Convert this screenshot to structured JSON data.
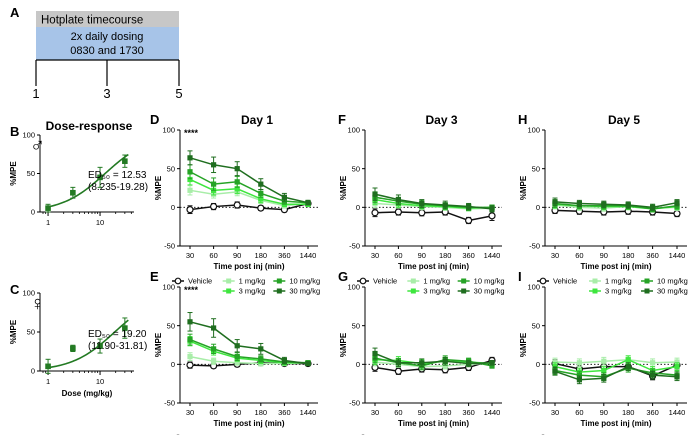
{
  "colors": {
    "Vehicle": "#111111",
    "1 mg/kg": "#a8eda8",
    "3 mg/kg": "#3ee63e",
    "10 mg/kg": "#26a326",
    "30 mg/kg": "#1f6e1f",
    "dose_response": "#237a23",
    "timeline_header": "#c7c7c7",
    "timeline_body": "#a7c4e8"
  },
  "timeline": {
    "label": "A",
    "header": "Hotplate timecourse",
    "body_line1": "2x daily dosing",
    "body_line2": "0830 and 1730",
    "days": [
      "1",
      "3",
      "5"
    ]
  },
  "chart_data": [
    {
      "id": "B",
      "type": "scatter",
      "title": "Dose-response",
      "sex": "male",
      "sex_symbol": "♂",
      "xscale": "log",
      "x": [
        1,
        3,
        10,
        30
      ],
      "y": [
        5,
        25,
        45,
        66
      ],
      "err": [
        5,
        7,
        13,
        8
      ],
      "fit": "sigmoid",
      "ed50": 12.53,
      "ed50_label": "ED₅₀ = 12.53",
      "ci_label": "(8.235-19.28)",
      "xlabel": "",
      "ylabel": "%MPE",
      "ylim": [
        0,
        100
      ],
      "xticks": [
        "1",
        "10"
      ],
      "yticks": [
        "0",
        "50",
        "100"
      ]
    },
    {
      "id": "C",
      "type": "scatter",
      "title": "",
      "sex": "female",
      "sex_symbol": "♀",
      "xscale": "log",
      "x": [
        1,
        3,
        10,
        30
      ],
      "y": [
        6,
        29,
        32,
        55
      ],
      "err": [
        9,
        4,
        9,
        13
      ],
      "fit": "sigmoid",
      "ed50": 19.2,
      "ed50_label": "ED₅₀ = 19.20",
      "ci_label": "(11.90-31.81)",
      "xlabel": "Dose  (mg/kg)",
      "ylabel": "%MPE",
      "ylim": [
        0,
        100
      ],
      "xticks": [
        "1",
        "10"
      ],
      "yticks": [
        "0",
        "50",
        "100"
      ]
    },
    {
      "id": "D",
      "type": "line",
      "title": "Day 1",
      "sig": "****",
      "categories": [
        "30",
        "60",
        "90",
        "180",
        "360",
        "1440"
      ],
      "series": [
        {
          "name": "Vehicle",
          "values": [
            -3,
            1,
            3,
            -1,
            -3,
            5
          ],
          "err": [
            5,
            4,
            4,
            3,
            3,
            3
          ]
        },
        {
          "name": "1 mg/kg",
          "values": [
            22,
            17,
            20,
            9,
            2,
            5
          ],
          "err": [
            6,
            5,
            5,
            4,
            3,
            3
          ]
        },
        {
          "name": "3 mg/kg",
          "values": [
            36,
            22,
            24,
            11,
            4,
            4
          ],
          "err": [
            7,
            6,
            6,
            5,
            3,
            3
          ]
        },
        {
          "name": "10 mg/kg",
          "values": [
            46,
            30,
            33,
            18,
            8,
            6
          ],
          "err": [
            9,
            8,
            7,
            5,
            4,
            3
          ]
        },
        {
          "name": "30 mg/kg",
          "values": [
            64,
            55,
            50,
            30,
            13,
            6
          ],
          "err": [
            9,
            10,
            9,
            7,
            5,
            3
          ]
        }
      ],
      "xlabel": "Time post inj  (min)",
      "ylabel": "%MPE",
      "ylim": [
        -50,
        100
      ],
      "yticks": [
        "-50",
        "0",
        "50",
        "100"
      ]
    },
    {
      "id": "E",
      "type": "line",
      "title": "",
      "sig": "****",
      "categories": [
        "30",
        "60",
        "90",
        "180",
        "360",
        "1440"
      ],
      "series": [
        {
          "name": "Vehicle",
          "values": [
            -1,
            -2,
            0,
            2,
            1,
            1
          ],
          "err": [
            4,
            3,
            3,
            2,
            2,
            2
          ]
        },
        {
          "name": "1 mg/kg",
          "values": [
            10,
            4,
            2,
            1,
            1,
            2
          ],
          "err": [
            5,
            4,
            3,
            3,
            2,
            2
          ]
        },
        {
          "name": "3 mg/kg",
          "values": [
            30,
            17,
            8,
            5,
            2,
            2
          ],
          "err": [
            6,
            5,
            4,
            4,
            3,
            2
          ]
        },
        {
          "name": "10 mg/kg",
          "values": [
            32,
            20,
            10,
            7,
            3,
            2
          ],
          "err": [
            7,
            6,
            5,
            4,
            3,
            2
          ]
        },
        {
          "name": "30 mg/kg",
          "values": [
            55,
            47,
            24,
            20,
            5,
            1
          ],
          "err": [
            12,
            12,
            8,
            7,
            4,
            2
          ]
        }
      ],
      "xlabel": "Time post inj  (min)",
      "ylabel": "%MPE",
      "ylim": [
        -50,
        100
      ],
      "yticks": [
        "-50",
        "0",
        "50",
        "100"
      ]
    },
    {
      "id": "F",
      "type": "line",
      "title": "Day 3",
      "categories": [
        "30",
        "60",
        "90",
        "180",
        "360",
        "1440"
      ],
      "series": [
        {
          "name": "Vehicle",
          "values": [
            -7,
            -6,
            -7,
            -6,
            -17,
            -11
          ],
          "err": [
            5,
            4,
            4,
            4,
            4,
            6
          ]
        },
        {
          "name": "1 mg/kg",
          "values": [
            5,
            3,
            1,
            0,
            -2,
            -1
          ],
          "err": [
            5,
            4,
            4,
            4,
            3,
            3
          ]
        },
        {
          "name": "3 mg/kg",
          "values": [
            10,
            5,
            2,
            1,
            -1,
            0
          ],
          "err": [
            6,
            5,
            4,
            4,
            3,
            3
          ]
        },
        {
          "name": "10 mg/kg",
          "values": [
            13,
            8,
            4,
            2,
            0,
            0
          ],
          "err": [
            7,
            5,
            5,
            4,
            4,
            3
          ]
        },
        {
          "name": "30 mg/kg",
          "values": [
            17,
            10,
            5,
            3,
            1,
            -2
          ],
          "err": [
            8,
            6,
            5,
            5,
            4,
            4
          ]
        }
      ],
      "xlabel": "Time post inj  (min)",
      "ylabel": "%MPE",
      "ylim": [
        -50,
        100
      ],
      "yticks": [
        "-50",
        "0",
        "50",
        "100"
      ]
    },
    {
      "id": "G",
      "type": "line",
      "title": "",
      "categories": [
        "30",
        "60",
        "90",
        "180",
        "360",
        "1440"
      ],
      "series": [
        {
          "name": "Vehicle",
          "values": [
            -4,
            -9,
            -6,
            -7,
            -4,
            5
          ],
          "err": [
            5,
            4,
            4,
            4,
            4,
            4
          ]
        },
        {
          "name": "1 mg/kg",
          "values": [
            3,
            0,
            -3,
            -2,
            0,
            2
          ],
          "err": [
            5,
            4,
            4,
            4,
            3,
            3
          ]
        },
        {
          "name": "3 mg/kg",
          "values": [
            6,
            5,
            1,
            4,
            3,
            1
          ],
          "err": [
            6,
            5,
            5,
            5,
            4,
            3
          ]
        },
        {
          "name": "10 mg/kg",
          "values": [
            8,
            2,
            -2,
            6,
            4,
            -2
          ],
          "err": [
            6,
            5,
            5,
            5,
            4,
            3
          ]
        },
        {
          "name": "30 mg/kg",
          "values": [
            14,
            2,
            2,
            4,
            1,
            2
          ],
          "err": [
            7,
            5,
            5,
            5,
            4,
            3
          ]
        }
      ],
      "xlabel": "Time post inj  (min)",
      "ylabel": "%MPE",
      "ylim": [
        -50,
        100
      ],
      "yticks": [
        "-50",
        "0",
        "50",
        "100"
      ]
    },
    {
      "id": "H",
      "type": "line",
      "title": "Day 5",
      "categories": [
        "30",
        "60",
        "90",
        "180",
        "360",
        "1440"
      ],
      "series": [
        {
          "name": "Vehicle",
          "values": [
            -4,
            -5,
            -6,
            -5,
            -6,
            -8
          ],
          "err": [
            4,
            4,
            4,
            4,
            4,
            4
          ]
        },
        {
          "name": "1 mg/kg",
          "values": [
            3,
            0,
            -1,
            1,
            -1,
            0
          ],
          "err": [
            5,
            4,
            4,
            4,
            4,
            4
          ]
        },
        {
          "name": "3 mg/kg",
          "values": [
            4,
            2,
            1,
            1,
            -2,
            1
          ],
          "err": [
            5,
            4,
            4,
            4,
            4,
            4
          ]
        },
        {
          "name": "10 mg/kg",
          "values": [
            5,
            2,
            2,
            2,
            -2,
            2
          ],
          "err": [
            5,
            4,
            4,
            4,
            4,
            4
          ]
        },
        {
          "name": "30 mg/kg",
          "values": [
            7,
            5,
            4,
            3,
            0,
            6
          ],
          "err": [
            5,
            4,
            4,
            4,
            4,
            4
          ]
        }
      ],
      "xlabel": "Time post inj  (min)",
      "ylabel": "%MPE",
      "ylim": [
        -50,
        100
      ],
      "yticks": [
        "-50",
        "0",
        "50",
        "100"
      ]
    },
    {
      "id": "I",
      "type": "line",
      "title": "",
      "categories": [
        "30",
        "60",
        "90",
        "180",
        "360",
        "1440"
      ],
      "series": [
        {
          "name": "Vehicle",
          "values": [
            1,
            -6,
            -3,
            -3,
            -15,
            -1
          ],
          "err": [
            5,
            5,
            5,
            5,
            5,
            5
          ]
        },
        {
          "name": "1 mg/kg",
          "values": [
            3,
            2,
            4,
            6,
            2,
            3
          ],
          "err": [
            5,
            5,
            5,
            5,
            5,
            5
          ]
        },
        {
          "name": "3 mg/kg",
          "values": [
            -3,
            -10,
            -8,
            6,
            -8,
            -3
          ],
          "err": [
            5,
            5,
            5,
            5,
            5,
            5
          ]
        },
        {
          "name": "10 mg/kg",
          "values": [
            -8,
            -14,
            -16,
            -5,
            -11,
            -14
          ],
          "err": [
            5,
            5,
            5,
            5,
            5,
            5
          ]
        },
        {
          "name": "30 mg/kg",
          "values": [
            -9,
            -20,
            -18,
            -3,
            -14,
            -16
          ],
          "err": [
            5,
            5,
            5,
            5,
            5,
            5
          ]
        }
      ],
      "xlabel": "Time post inj  (min)",
      "ylabel": "%MPE",
      "ylim": [
        -50,
        100
      ],
      "yticks": [
        "-50",
        "0",
        "50",
        "100"
      ]
    }
  ]
}
